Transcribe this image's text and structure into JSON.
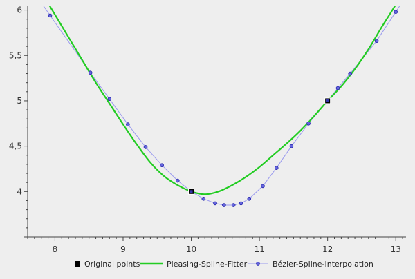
{
  "chart_data": {
    "type": "line",
    "title": "",
    "xlabel": "",
    "ylabel": "",
    "xlim": [
      7.6,
      13.15
    ],
    "ylim": [
      3.5,
      6.05
    ],
    "x_ticks": [
      8,
      9,
      10,
      11,
      12,
      13
    ],
    "x_tick_labels": [
      "8",
      "9",
      "10",
      "11",
      "12",
      "13"
    ],
    "y_ticks": [
      4,
      4.5,
      5,
      5.5,
      6
    ],
    "y_tick_labels": [
      "4",
      "4,5",
      "5",
      "5,5",
      "6"
    ],
    "grid": false,
    "legend_position": "bottom",
    "colors": {
      "background": "#eeeeee",
      "axis": "#444444",
      "original_points": "#000000",
      "pleasing_spline": "#22cc22",
      "bezier_line": "#9999ee",
      "bezier_marker_fill": "#6666dd",
      "bezier_marker_stroke": "#2222aa"
    },
    "series": [
      {
        "name": "Original points",
        "style": "square-markers",
        "x": [
          10,
          12
        ],
        "y": [
          4,
          5
        ]
      },
      {
        "name": "Pleasing-Spline-Fitter",
        "style": "line",
        "x": [
          7.6,
          7.8,
          8.0,
          8.2,
          8.4,
          8.6,
          8.8,
          9.0,
          9.2,
          9.4,
          9.6,
          9.8,
          10.0,
          10.2,
          10.4,
          10.6,
          10.8,
          11.0,
          11.2,
          11.4,
          11.6,
          11.8,
          12.0,
          12.2,
          12.4,
          12.6,
          12.8,
          13.0,
          13.15
        ],
        "y": [
          6.45,
          6.2,
          5.95,
          5.7,
          5.45,
          5.2,
          4.97,
          4.74,
          4.52,
          4.32,
          4.17,
          4.07,
          4.0,
          3.97,
          4.0,
          4.07,
          4.16,
          4.27,
          4.4,
          4.53,
          4.67,
          4.83,
          5.0,
          5.16,
          5.35,
          5.57,
          5.82,
          6.06,
          6.25
        ]
      },
      {
        "name": "Bézier-Spline-Interpolation",
        "style": "line-markers",
        "x": [
          7.6,
          7.93,
          8.52,
          8.8,
          9.07,
          9.33,
          9.57,
          9.8,
          10.0,
          10.18,
          10.35,
          10.48,
          10.62,
          10.73,
          10.85,
          11.05,
          11.25,
          11.47,
          11.72,
          12.0,
          12.15,
          12.33,
          12.72,
          13.0,
          13.15
        ],
        "y": [
          6.3,
          5.94,
          5.31,
          5.02,
          4.74,
          4.49,
          4.29,
          4.12,
          4.0,
          3.92,
          3.87,
          3.85,
          3.85,
          3.87,
          3.92,
          4.06,
          4.26,
          4.5,
          4.75,
          5.0,
          5.14,
          5.3,
          5.66,
          5.98,
          6.15
        ]
      }
    ]
  }
}
